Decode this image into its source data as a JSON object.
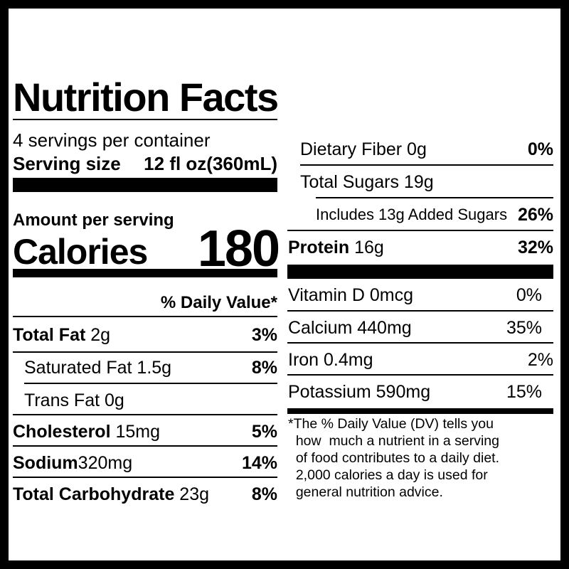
{
  "label": {
    "title": "Nutrition Facts",
    "servings_per_container": "4 servings per container",
    "serving_size_label": "Serving size",
    "serving_size_value": "12 fl oz(360mL)",
    "amount_per_serving": "Amount per serving",
    "calories_label": "Calories",
    "calories_value": "180",
    "daily_value_header": "% Daily Value*",
    "left_nutrients": [
      {
        "name": "Total Fat",
        "amount": "2g",
        "dv": "3%"
      },
      {
        "name": "Saturated Fat 1.5g",
        "amount": "",
        "dv": "8%"
      },
      {
        "name": "Trans Fat 0g",
        "amount": "",
        "dv": ""
      },
      {
        "name": "Cholesterol",
        "amount": "15mg",
        "dv": "5%"
      },
      {
        "name": "Sodium",
        "amount": "320mg",
        "dv": "14%"
      },
      {
        "name": "Total Carbohydrate",
        "amount": "23g",
        "dv": "8%"
      }
    ],
    "right_nutrients": [
      {
        "name": "Dietary Fiber 0g",
        "amount": "",
        "dv": "0%"
      },
      {
        "name": "Total Sugars 19g",
        "amount": "",
        "dv": ""
      },
      {
        "name": "Includes 13g Added Sugars",
        "amount": "",
        "dv": "26%"
      },
      {
        "name": "Protein",
        "amount": "16g",
        "dv": "32%"
      }
    ],
    "vitamins": [
      {
        "name": "Vitamin D 0mcg",
        "dv": "0%"
      },
      {
        "name": "Calcium 440mg",
        "dv": "35%"
      },
      {
        "name": "Iron 0.4mg",
        "dv": "2%"
      },
      {
        "name": "Potassium 590mg",
        "dv": "15%"
      }
    ],
    "footnote": "*The % Daily Value (DV) tells you\n  how  much a nutrient in a serving\n  of food contributes to a daily diet.\n  2,000 calories a day is used for\n  general nutrition advice."
  }
}
